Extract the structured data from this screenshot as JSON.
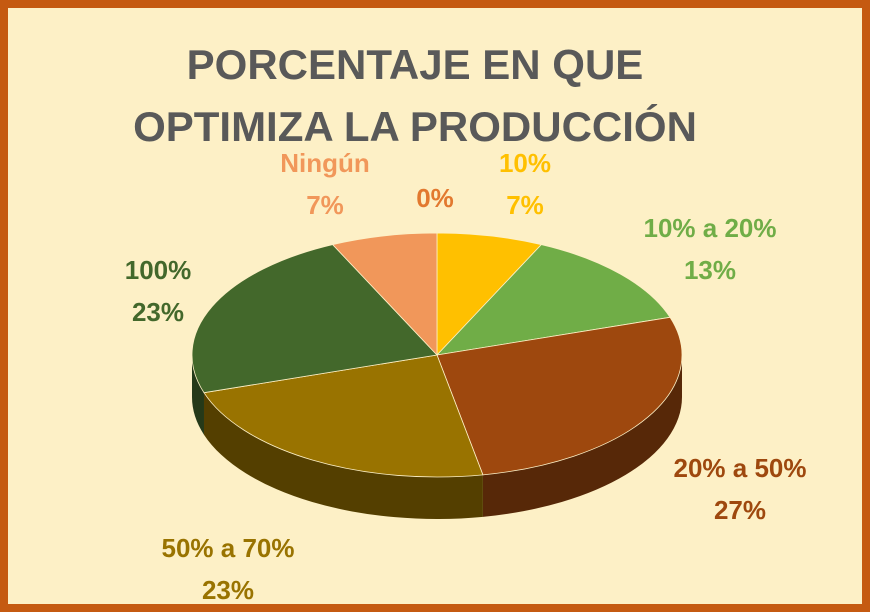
{
  "chart_data": {
    "type": "pie3d",
    "title": "PORCENTAJE EN QUE OPTIMIZA LA PRODUCCIÓN",
    "categories": [
      null,
      "10%",
      "10% a 20%",
      "20% a 50%",
      "50% a 70%",
      "100%",
      "Ningún"
    ],
    "values": [
      0,
      7,
      13,
      27,
      23,
      23,
      7
    ],
    "value_labels": [
      "0%",
      "7%",
      "13%",
      "27%",
      "23%",
      "23%",
      "7%"
    ],
    "colors": [
      "#e2792f",
      "#ffc000",
      "#70ad47",
      "#9e480e",
      "#997300",
      "#43682b",
      "#f1975a"
    ]
  }
}
